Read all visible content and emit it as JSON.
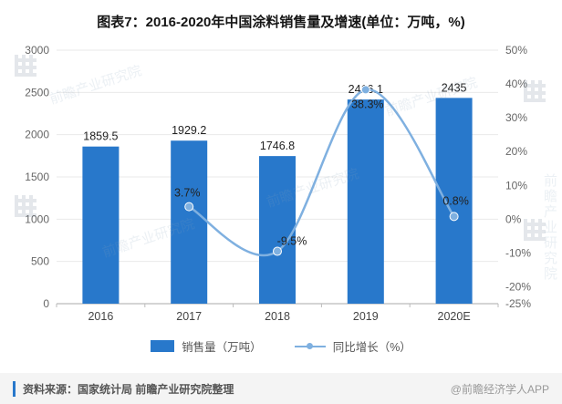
{
  "title": "图表7：2016-2020年中国涂料销售量及增速(单位：万吨，%)",
  "chart_data": {
    "type": "bar",
    "subtype": "bar+line-combo",
    "categories": [
      "2016",
      "2017",
      "2018",
      "2019",
      "2020E"
    ],
    "series": [
      {
        "name": "销售量（万吨）",
        "type": "bar",
        "axis": "left",
        "values": [
          1859.5,
          1929.2,
          1746.8,
          2416.1,
          2435
        ],
        "labels": [
          "1859.5",
          "1929.2",
          "1746.8",
          "2416.1",
          "2435"
        ],
        "color": "#2878cb"
      },
      {
        "name": "同比增长（%）",
        "type": "line",
        "axis": "right",
        "category_indexes": [
          1,
          2,
          3,
          4
        ],
        "values": [
          3.7,
          -9.5,
          38.3,
          0.8
        ],
        "labels": [
          "3.7%",
          "-9.5%",
          "38.3%",
          "0.8%"
        ],
        "color": "#7fb0e0"
      }
    ],
    "left_axis": {
      "min": 0,
      "max": 3000,
      "ticks": [
        0,
        500,
        1000,
        1500,
        2000,
        2500,
        3000
      ]
    },
    "right_axis": {
      "min": -25,
      "max": 50,
      "ticks": [
        50,
        40,
        30,
        20,
        10,
        0,
        -10,
        -20,
        -25
      ],
      "tick_labels": [
        "50%",
        "40%",
        "30%",
        "20%",
        "10%",
        "0%",
        "-10%",
        "-20%",
        "-25%"
      ]
    },
    "grid": true,
    "legend_position": "bottom"
  },
  "footer": {
    "source": "资料来源：国家统计局 前瞻产业研究院整理",
    "credit": "@前瞻经济学人APP"
  },
  "watermark": {
    "text": "前瞻产业研究院"
  }
}
